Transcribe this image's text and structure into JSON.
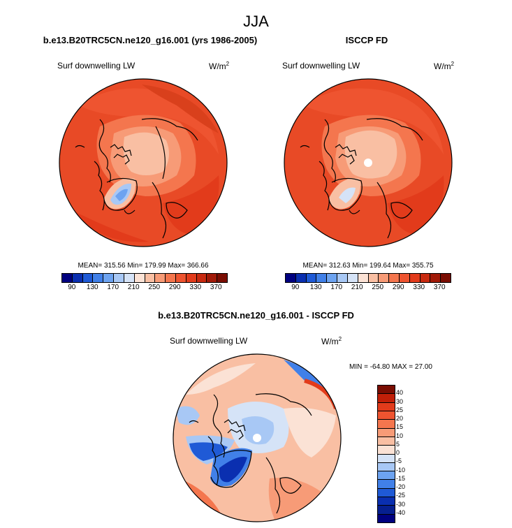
{
  "figure": {
    "title": "JJA"
  },
  "panels": {
    "model": {
      "title": "b.e13.B20TRC5CN.ne120_g16.001 (yrs 1986-2005)",
      "variable": "Surf downwelling LW",
      "unit_base": "W/m",
      "unit_exp": "2",
      "stats": "MEAN= 315.56  Min= 179.99  Max= 366.66"
    },
    "obs": {
      "title": "ISCCP FD",
      "variable": "Surf downwelling LW",
      "unit_base": "W/m",
      "unit_exp": "2",
      "stats": "MEAN= 312.63  Min= 199.64  Max= 355.75"
    },
    "diff": {
      "title": "b.e13.B20TRC5CN.ne120_g16.001 - ISCCP FD",
      "variable": "Surf downwelling LW",
      "unit_base": "W/m",
      "unit_exp": "2",
      "stats": "MIN = -64.80 MAX =  27.00"
    }
  },
  "colorbars": {
    "absolute": {
      "labels": [
        "90",
        "130",
        "170",
        "210",
        "250",
        "290",
        "330",
        "370"
      ],
      "colors": [
        "#00007f",
        "#0a2fb0",
        "#1f5ad6",
        "#4180e8",
        "#6da3f0",
        "#a8c8f5",
        "#d5e3f7",
        "#fbe2d5",
        "#f9bfa3",
        "#f79b77",
        "#f4764e",
        "#ee5430",
        "#e23b1b",
        "#c82a10",
        "#a11a08",
        "#7a0d02"
      ]
    },
    "difference": {
      "labels": [
        "40",
        "30",
        "25",
        "20",
        "15",
        "10",
        "5",
        "0",
        "-5",
        "-10",
        "-15",
        "-20",
        "-25",
        "-30",
        "-40"
      ],
      "colors": [
        "#7a0d02",
        "#c11f08",
        "#e23b1b",
        "#ee5430",
        "#f4764e",
        "#f79b77",
        "#f9bfa3",
        "#fbe2d5",
        "#d5e3f7",
        "#a8c8f5",
        "#6da3f0",
        "#4180e8",
        "#1f5ad6",
        "#0a2fb0",
        "#061f8f",
        "#00007f"
      ]
    }
  }
}
